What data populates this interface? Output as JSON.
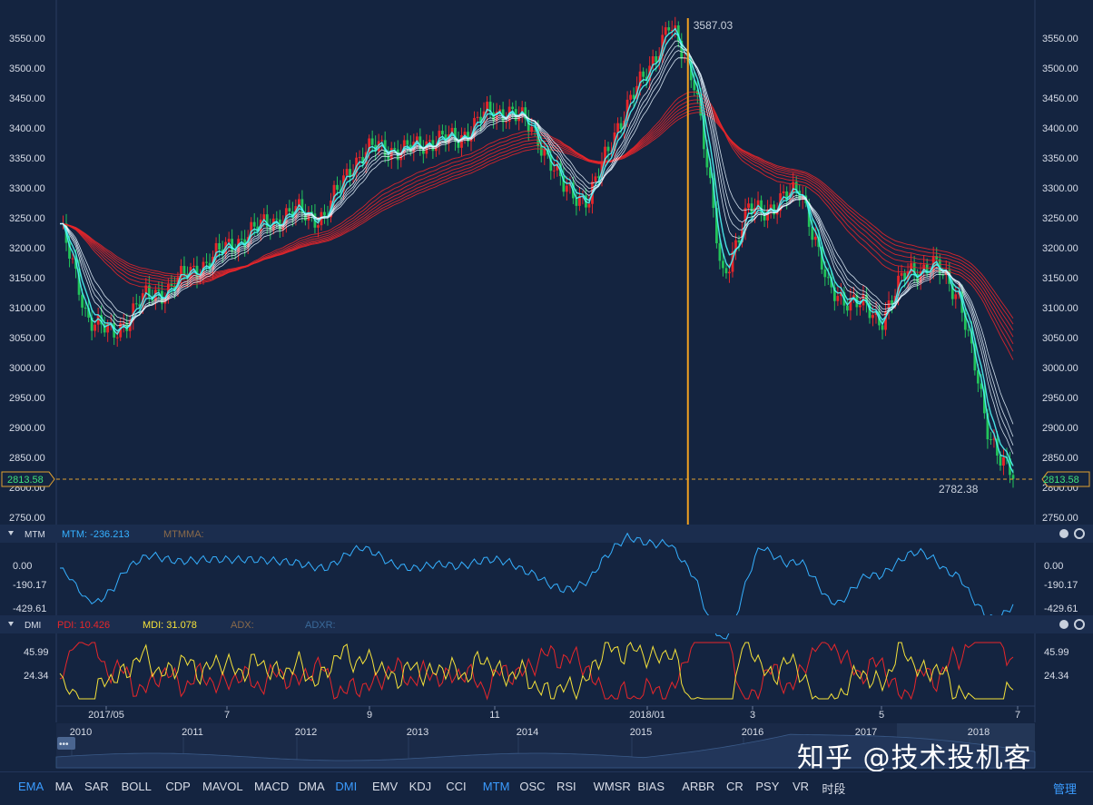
{
  "main": {
    "y_ticks": [
      "3550.00",
      "3500.00",
      "3450.00",
      "3400.00",
      "3350.00",
      "3300.00",
      "3250.00",
      "3200.00",
      "3150.00",
      "3100.00",
      "3050.00",
      "3000.00",
      "2950.00",
      "2900.00",
      "2850.00",
      "2800.00",
      "2750.00"
    ],
    "last_price": "2813.58",
    "high_label": "3587.03",
    "low_label": "2782.38",
    "colors": {
      "ema_fast": "#4ff5f5",
      "ema_slow": "#e8262a",
      "up": "#e8262a",
      "down": "#22c35a",
      "crosshair": "#f0a020"
    }
  },
  "mtm": {
    "name": "MTM",
    "value_label": "MTM: -236.213",
    "ma_label": "MTMMA:",
    "y_ticks": [
      "0.00",
      "-190.17",
      "-429.61"
    ]
  },
  "dmi": {
    "name": "DMI",
    "pdi_label": "PDI: 10.426",
    "mdi_label": "MDI: 31.078",
    "adx_label": "ADX:",
    "adxr_label": "ADXR:",
    "y_ticks": [
      "45.99",
      "24.34"
    ]
  },
  "x_axis": {
    "labels": [
      "2017/05",
      "7",
      "9",
      "11",
      "2018/01",
      "3",
      "5",
      "7"
    ]
  },
  "overview": {
    "years": [
      "2010",
      "2011",
      "2012",
      "2013",
      "2014",
      "2015",
      "2016",
      "2017",
      "2018"
    ]
  },
  "toolbar": {
    "items": [
      "EMA",
      "MA",
      "SAR",
      "BOLL",
      "CDP",
      "MAVOL",
      "MACD",
      "DMA",
      "DMI",
      "EMV",
      "KDJ",
      "CCI",
      "MTM",
      "OSC",
      "RSI",
      "WMSR",
      "BIAS",
      "ARBR",
      "CR",
      "PSY",
      "VR",
      "时段"
    ],
    "active": [
      "EMA",
      "DMI",
      "MTM"
    ],
    "manage": "管理"
  },
  "watermark": "知乎 @技术投机客",
  "chart_data": {
    "type": "candlestick",
    "x_range": [
      "2017/04",
      "2018/07"
    ],
    "ylim": [
      2750,
      3587.03
    ],
    "close_path": [
      [
        "2017/04",
        3240
      ],
      [
        "2017/05",
        3090
      ],
      [
        "2017/05",
        3052
      ],
      [
        "2017/05",
        3110
      ],
      [
        "2017/06",
        3130
      ],
      [
        "2017/06",
        3160
      ],
      [
        "2017/06",
        3190
      ],
      [
        "2017/07",
        3220
      ],
      [
        "2017/07",
        3245
      ],
      [
        "2017/07",
        3260
      ],
      [
        "2017/08",
        3250
      ],
      [
        "2017/08",
        3340
      ],
      [
        "2017/08",
        3370
      ],
      [
        "2017/09",
        3360
      ],
      [
        "2017/09",
        3380
      ],
      [
        "2017/10",
        3380
      ],
      [
        "2017/10",
        3420
      ],
      [
        "2017/11",
        3430
      ],
      [
        "2017/11",
        3390
      ],
      [
        "2017/12",
        3300
      ],
      [
        "2017/12",
        3280
      ],
      [
        "2018/01",
        3400
      ],
      [
        "2018/01",
        3480
      ],
      [
        "2018/01",
        3570
      ],
      [
        "2018/02",
        3480
      ],
      [
        "2018/02",
        3150
      ],
      [
        "2018/02",
        3260
      ],
      [
        "2018/03",
        3270
      ],
      [
        "2018/03",
        3300
      ],
      [
        "2018/03",
        3130
      ],
      [
        "2018/04",
        3110
      ],
      [
        "2018/04",
        3080
      ],
      [
        "2018/05",
        3160
      ],
      [
        "2018/05",
        3170
      ],
      [
        "2018/06",
        3120
      ],
      [
        "2018/06",
        2900
      ],
      [
        "2018/07",
        2813.58
      ]
    ],
    "high": 3587.03,
    "low": 2782.38,
    "last": 2813.58,
    "mtm_last": -236.213,
    "pdi_last": 10.426,
    "mdi_last": 31.078
  }
}
